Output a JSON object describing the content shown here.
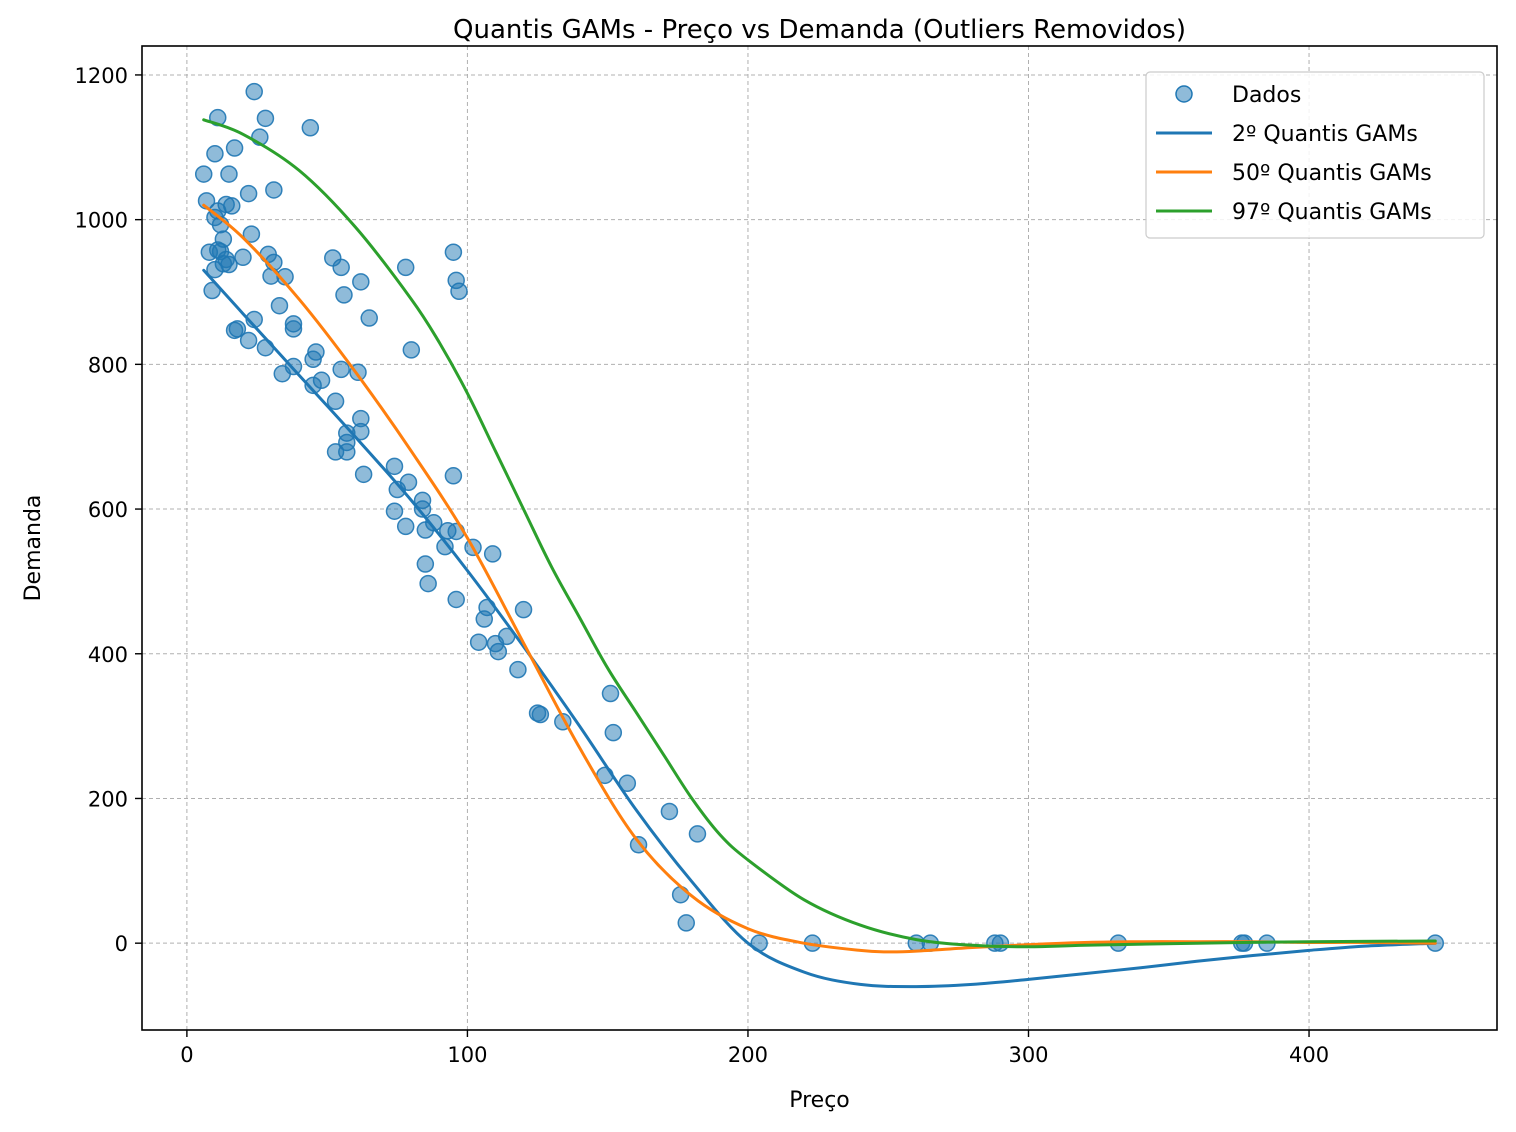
{
  "chart_data": {
    "type": "scatter",
    "title": "Quantis GAMs - Preço vs Demanda (Outliers Removidos)",
    "xlabel": "Preço",
    "ylabel": "Demanda",
    "xlim": [
      -16,
      467
    ],
    "ylim": [
      -120,
      1240
    ],
    "xticks": [
      0,
      100,
      200,
      300,
      400
    ],
    "yticks": [
      0,
      200,
      400,
      600,
      800,
      1000,
      1200
    ],
    "grid": true,
    "legend_position": "upper right",
    "scatter": {
      "name": "Dados",
      "color": "#1f77b4",
      "points": [
        [
          6,
          1063
        ],
        [
          7,
          1026
        ],
        [
          8,
          955
        ],
        [
          9,
          902
        ],
        [
          10,
          1003
        ],
        [
          10,
          931
        ],
        [
          10,
          1091
        ],
        [
          11,
          1012
        ],
        [
          11,
          958
        ],
        [
          11,
          1141
        ],
        [
          12,
          993
        ],
        [
          12,
          956
        ],
        [
          13,
          973
        ],
        [
          13,
          939
        ],
        [
          14,
          1021
        ],
        [
          14,
          945
        ],
        [
          15,
          1063
        ],
        [
          15,
          938
        ],
        [
          16,
          1019
        ],
        [
          17,
          1099
        ],
        [
          17,
          847
        ],
        [
          18,
          849
        ],
        [
          20,
          948
        ],
        [
          22,
          833
        ],
        [
          22,
          1036
        ],
        [
          23,
          980
        ],
        [
          24,
          862
        ],
        [
          24,
          1177
        ],
        [
          26,
          1114
        ],
        [
          28,
          823
        ],
        [
          28,
          1140
        ],
        [
          29,
          952
        ],
        [
          30,
          922
        ],
        [
          31,
          941
        ],
        [
          31,
          1041
        ],
        [
          33,
          881
        ],
        [
          34,
          787
        ],
        [
          35,
          921
        ],
        [
          38,
          797
        ],
        [
          38,
          849
        ],
        [
          38,
          856
        ],
        [
          44,
          1127
        ],
        [
          45,
          771
        ],
        [
          45,
          807
        ],
        [
          46,
          817
        ],
        [
          48,
          778
        ],
        [
          52,
          947
        ],
        [
          53,
          749
        ],
        [
          53,
          679
        ],
        [
          55,
          793
        ],
        [
          55,
          934
        ],
        [
          56,
          896
        ],
        [
          57,
          679
        ],
        [
          57,
          692
        ],
        [
          57,
          705
        ],
        [
          61,
          789
        ],
        [
          62,
          725
        ],
        [
          62,
          707
        ],
        [
          62,
          914
        ],
        [
          63,
          648
        ],
        [
          65,
          864
        ],
        [
          74,
          659
        ],
        [
          74,
          597
        ],
        [
          75,
          627
        ],
        [
          78,
          934
        ],
        [
          78,
          576
        ],
        [
          79,
          637
        ],
        [
          80,
          820
        ],
        [
          84,
          612
        ],
        [
          84,
          600
        ],
        [
          85,
          571
        ],
        [
          85,
          524
        ],
        [
          86,
          497
        ],
        [
          88,
          581
        ],
        [
          92,
          548
        ],
        [
          93,
          570
        ],
        [
          95,
          646
        ],
        [
          95,
          955
        ],
        [
          96,
          569
        ],
        [
          96,
          916
        ],
        [
          96,
          475
        ],
        [
          97,
          901
        ],
        [
          102,
          547
        ],
        [
          104,
          416
        ],
        [
          106,
          448
        ],
        [
          107,
          464
        ],
        [
          109,
          538
        ],
        [
          110,
          414
        ],
        [
          111,
          403
        ],
        [
          114,
          424
        ],
        [
          118,
          378
        ],
        [
          120,
          461
        ],
        [
          125,
          318
        ],
        [
          126,
          316
        ],
        [
          134,
          306
        ],
        [
          149,
          232
        ],
        [
          151,
          345
        ],
        [
          152,
          291
        ],
        [
          157,
          221
        ],
        [
          161,
          136
        ],
        [
          172,
          182
        ],
        [
          176,
          67
        ],
        [
          178,
          28
        ],
        [
          182,
          151
        ],
        [
          204,
          0
        ],
        [
          223,
          0
        ],
        [
          260,
          0
        ],
        [
          265,
          0
        ],
        [
          288,
          0
        ],
        [
          290,
          0
        ],
        [
          332,
          0
        ],
        [
          376,
          0
        ],
        [
          377,
          0
        ],
        [
          385,
          0
        ],
        [
          445,
          0
        ]
      ]
    },
    "series": [
      {
        "name": "2º Quantis GAMs",
        "color": "#1f77b4",
        "x": [
          6,
          20,
          40,
          60,
          80,
          100,
          120,
          140,
          160,
          180,
          200,
          220,
          240,
          260,
          280,
          300,
          320,
          340,
          360,
          380,
          400,
          420,
          445
        ],
        "values": [
          930,
          870,
          785,
          700,
          612,
          515,
          410,
          300,
          185,
          85,
          0,
          -40,
          -57,
          -60,
          -57,
          -50,
          -42,
          -34,
          -25,
          -17,
          -10,
          -4,
          0
        ]
      },
      {
        "name": "50º Quantis GAMs",
        "color": "#ff7f0e",
        "x": [
          6,
          20,
          40,
          60,
          80,
          100,
          120,
          140,
          160,
          180,
          200,
          220,
          240,
          250,
          260,
          280,
          300,
          320,
          340,
          360,
          380,
          400,
          420,
          445
        ],
        "values": [
          1020,
          975,
          890,
          790,
          680,
          560,
          415,
          270,
          145,
          65,
          20,
          0,
          -10,
          -12,
          -11,
          -6,
          -2,
          1,
          2,
          2,
          2,
          1,
          1,
          0
        ]
      },
      {
        "name": "97º Quantis GAMs",
        "color": "#2ca02c",
        "x": [
          6,
          20,
          40,
          60,
          80,
          90,
          100,
          110,
          120,
          130,
          140,
          150,
          160,
          170,
          180,
          190,
          200,
          220,
          240,
          260,
          280,
          300,
          320,
          360,
          400,
          445
        ],
        "values": [
          1138,
          1118,
          1068,
          990,
          890,
          830,
          760,
          680,
          600,
          520,
          450,
          380,
          320,
          260,
          200,
          150,
          115,
          60,
          25,
          5,
          -3,
          -5,
          -3,
          0,
          2,
          3
        ]
      }
    ]
  }
}
